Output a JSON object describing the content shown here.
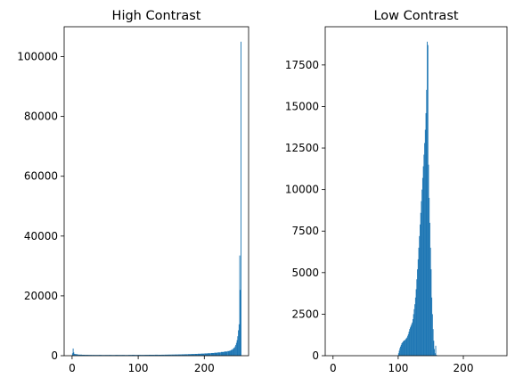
{
  "colors": {
    "bar": "#1f77b4",
    "axis": "#000000",
    "background": "#ffffff"
  },
  "chart_data": [
    {
      "type": "bar",
      "title": "High Contrast",
      "xlabel": "",
      "ylabel": "",
      "xlim": [
        -12,
        267
      ],
      "ylim": [
        0,
        110000
      ],
      "grid": false,
      "xticks": [
        0,
        100,
        200
      ],
      "yticks": [
        0,
        20000,
        40000,
        60000,
        80000,
        100000
      ],
      "series": [
        {
          "bins": [
            0,
            1,
            2,
            3,
            5,
            8,
            10,
            15,
            20,
            25,
            30,
            35,
            40,
            45,
            50,
            55,
            60,
            65,
            70,
            75,
            80,
            85,
            90,
            95,
            100,
            105,
            110,
            115,
            120,
            125,
            130,
            135,
            140,
            145,
            150,
            155,
            160,
            165,
            170,
            175,
            180,
            185,
            190,
            195,
            200,
            205,
            210,
            215,
            220,
            225,
            230,
            235,
            238,
            240,
            242,
            244,
            246,
            247,
            248,
            249,
            250,
            251,
            252,
            253,
            254,
            255
          ],
          "values": [
            800,
            2400,
            1100,
            600,
            500,
            400,
            350,
            300,
            280,
            260,
            250,
            240,
            260,
            230,
            240,
            250,
            230,
            260,
            240,
            250,
            230,
            260,
            280,
            250,
            270,
            260,
            280,
            300,
            290,
            320,
            300,
            320,
            340,
            360,
            380,
            400,
            420,
            450,
            480,
            520,
            560,
            600,
            650,
            700,
            760,
            820,
            900,
            1000,
            1100,
            1250,
            1400,
            1550,
            1700,
            1900,
            2200,
            2600,
            3100,
            3600,
            4300,
            5200,
            6500,
            8500,
            10500,
            33500,
            22000,
            105000
          ]
        }
      ]
    },
    {
      "type": "bar",
      "title": "Low Contrast",
      "xlabel": "",
      "ylabel": "",
      "xlim": [
        -12,
        267
      ],
      "ylim": [
        0,
        19800
      ],
      "grid": false,
      "xticks": [
        0,
        100,
        200
      ],
      "yticks": [
        0,
        2500,
        5000,
        7500,
        10000,
        12500,
        15000,
        17500
      ],
      "series": [
        {
          "bins": [
            100,
            101,
            102,
            103,
            104,
            105,
            106,
            107,
            108,
            109,
            110,
            111,
            112,
            113,
            114,
            115,
            116,
            117,
            118,
            119,
            120,
            121,
            122,
            123,
            124,
            125,
            126,
            127,
            128,
            129,
            130,
            131,
            132,
            133,
            134,
            135,
            136,
            137,
            138,
            139,
            140,
            141,
            142,
            143,
            144,
            145,
            146,
            147,
            148,
            149,
            150,
            151,
            152,
            153,
            154,
            155,
            156,
            157,
            158
          ],
          "values": [
            150,
            300,
            450,
            550,
            650,
            750,
            800,
            850,
            900,
            920,
            950,
            1000,
            1050,
            1100,
            1200,
            1300,
            1450,
            1600,
            1700,
            1800,
            1900,
            2000,
            2200,
            2500,
            2800,
            3100,
            3500,
            4000,
            4600,
            5200,
            5800,
            6500,
            7200,
            7900,
            8600,
            9300,
            10000,
            10700,
            11400,
            12100,
            12800,
            13600,
            14600,
            16000,
            18900,
            18700,
            11500,
            9500,
            8000,
            6500,
            5200,
            3500,
            2500,
            1600,
            900,
            400,
            150,
            600,
            50
          ]
        }
      ]
    }
  ]
}
